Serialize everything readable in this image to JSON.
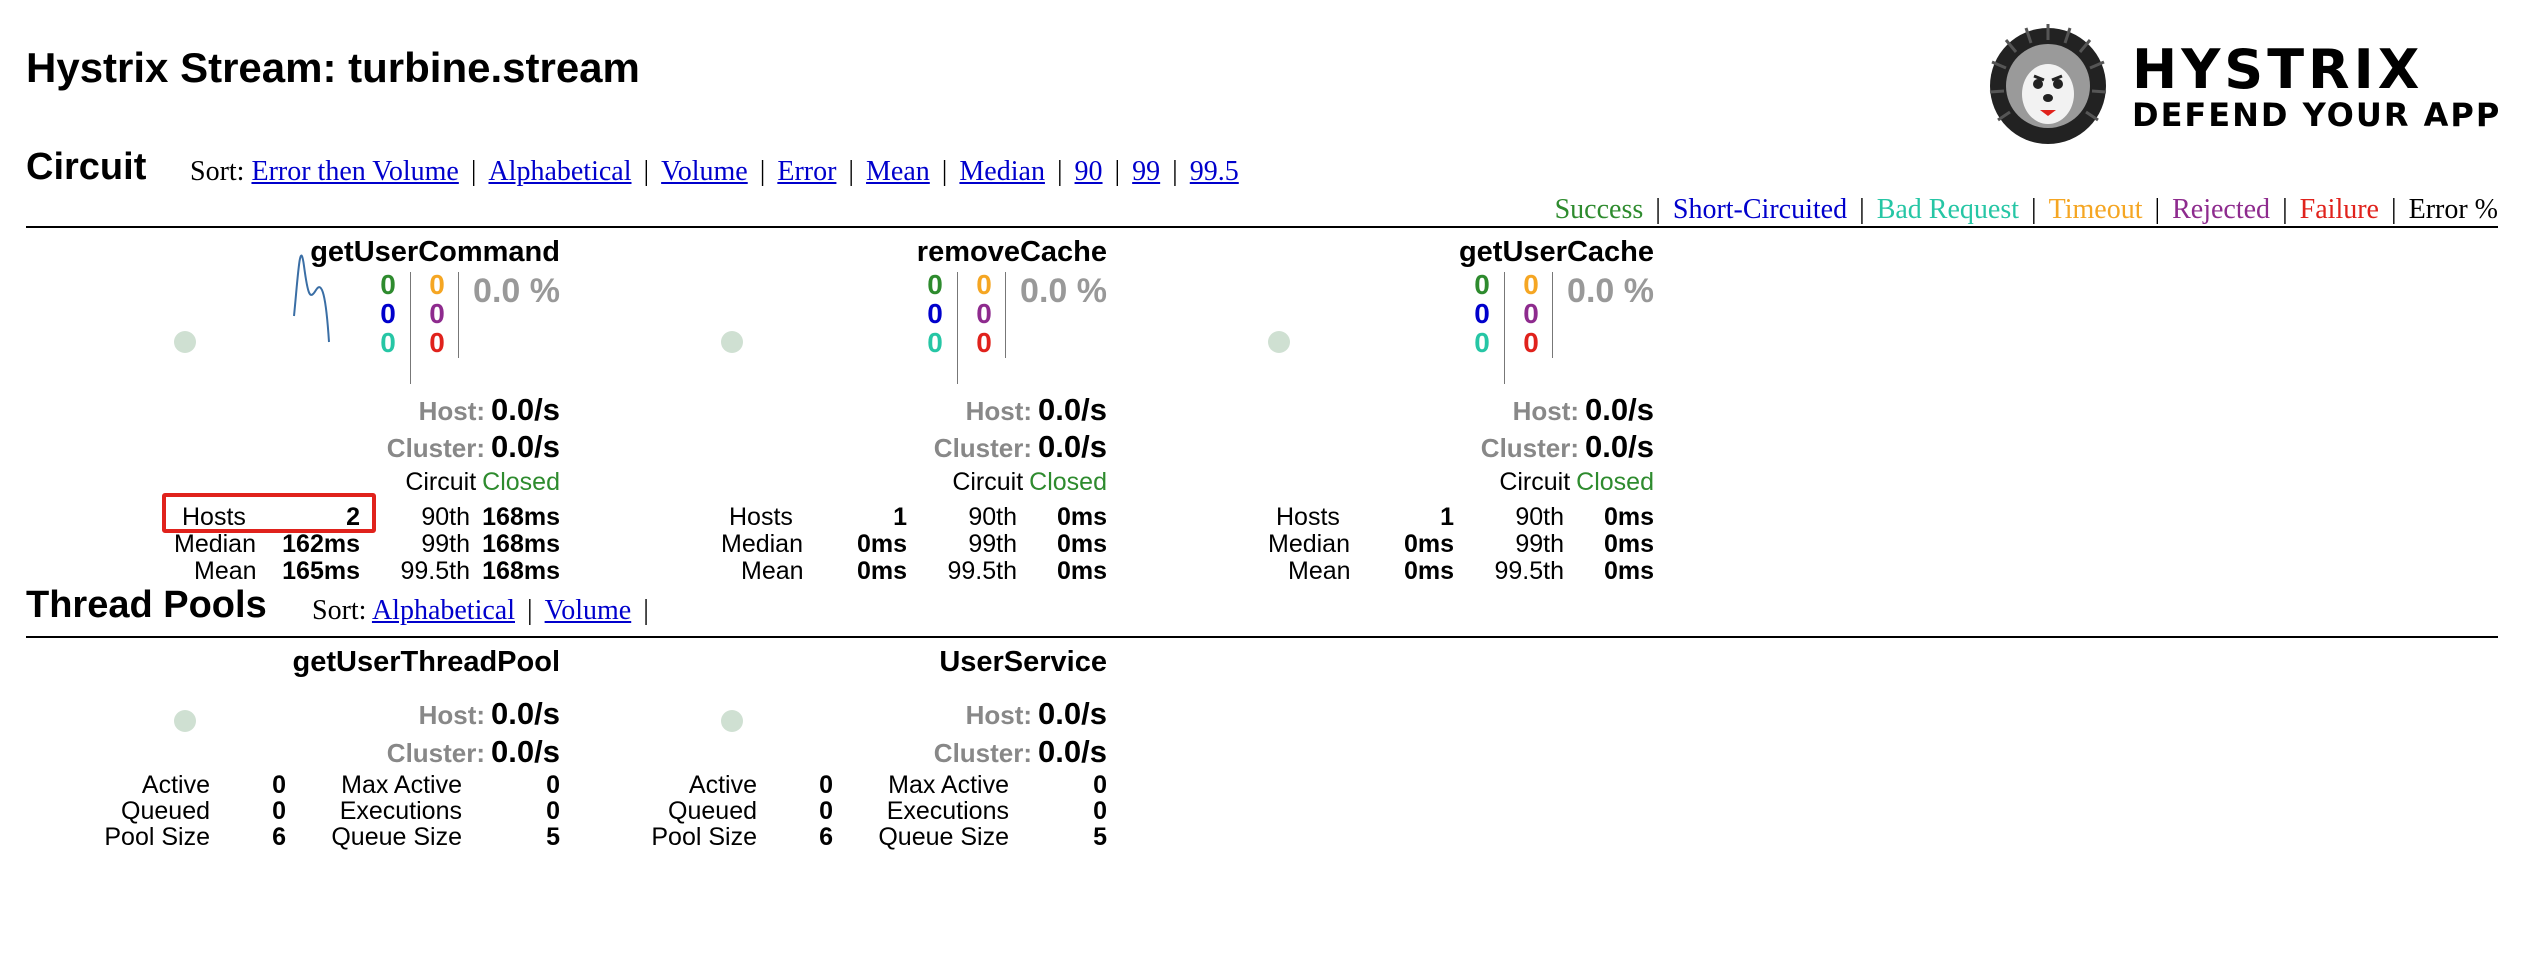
{
  "page": {
    "title": "Hystrix Stream: turbine.stream"
  },
  "logo": {
    "word1": "HYSTRIX",
    "word2": "DEFEND YOUR APP"
  },
  "circuit_section": {
    "title": "Circuit",
    "sort_label": "Sort:",
    "sort_links": [
      "Error then Volume",
      "Alphabetical",
      "Volume",
      "Error",
      "Mean",
      "Median",
      "90",
      "99",
      "99.5"
    ],
    "legend": [
      {
        "label": "Success",
        "color": "#2e8b2e"
      },
      {
        "label": "Short-Circuited",
        "color": "#0000cc"
      },
      {
        "label": "Bad Request",
        "color": "#26c6a5"
      },
      {
        "label": "Timeout",
        "color": "#f5a623"
      },
      {
        "label": "Rejected",
        "color": "#8e2b8e"
      },
      {
        "label": "Failure",
        "color": "#e0221c"
      },
      {
        "label": "Error %",
        "color": "#000000"
      }
    ]
  },
  "circuits": [
    {
      "name": "getUserCommand",
      "counts": {
        "success": "0",
        "short_circuited": "0",
        "bad_request": "0",
        "timeout": "0",
        "rejected": "0",
        "failure": "0"
      },
      "error_pct": "0.0 %",
      "host_label": "Host:",
      "host_rate": "0.0/s",
      "cluster_label": "Cluster:",
      "cluster_rate": "0.0/s",
      "circuit_label": "Circuit",
      "circuit_status": "Closed",
      "hosts_label": "Hosts",
      "hosts": "2",
      "median_label": "Median",
      "median": "162ms",
      "mean_label": "Mean",
      "mean": "165ms",
      "p90_label": "90th",
      "p90": "168ms",
      "p99_label": "99th",
      "p99": "168ms",
      "p995_label": "99.5th",
      "p995": "168ms",
      "has_sparkline": true
    },
    {
      "name": "removeCache",
      "counts": {
        "success": "0",
        "short_circuited": "0",
        "bad_request": "0",
        "timeout": "0",
        "rejected": "0",
        "failure": "0"
      },
      "error_pct": "0.0 %",
      "host_label": "Host:",
      "host_rate": "0.0/s",
      "cluster_label": "Cluster:",
      "cluster_rate": "0.0/s",
      "circuit_label": "Circuit",
      "circuit_status": "Closed",
      "hosts_label": "Hosts",
      "hosts": "1",
      "median_label": "Median",
      "median": "0ms",
      "mean_label": "Mean",
      "mean": "0ms",
      "p90_label": "90th",
      "p90": "0ms",
      "p99_label": "99th",
      "p99": "0ms",
      "p995_label": "99.5th",
      "p995": "0ms",
      "has_sparkline": false
    },
    {
      "name": "getUserCache",
      "counts": {
        "success": "0",
        "short_circuited": "0",
        "bad_request": "0",
        "timeout": "0",
        "rejected": "0",
        "failure": "0"
      },
      "error_pct": "0.0 %",
      "host_label": "Host:",
      "host_rate": "0.0/s",
      "cluster_label": "Cluster:",
      "cluster_rate": "0.0/s",
      "circuit_label": "Circuit",
      "circuit_status": "Closed",
      "hosts_label": "Hosts",
      "hosts": "1",
      "median_label": "Median",
      "median": "0ms",
      "mean_label": "Mean",
      "mean": "0ms",
      "p90_label": "90th",
      "p90": "0ms",
      "p99_label": "99th",
      "p99": "0ms",
      "p995_label": "99.5th",
      "p995": "0ms",
      "has_sparkline": false
    }
  ],
  "threadpool_section": {
    "title": "Thread Pools",
    "sort_label": "Sort:",
    "sort_links": [
      "Alphabetical",
      "Volume"
    ]
  },
  "threadpools": [
    {
      "name": "getUserThreadPool",
      "host_label": "Host:",
      "host_rate": "0.0/s",
      "cluster_label": "Cluster:",
      "cluster_rate": "0.0/s",
      "active_label": "Active",
      "active": "0",
      "queued_label": "Queued",
      "queued": "0",
      "pool_size_label": "Pool Size",
      "pool_size": "6",
      "max_active_label": "Max Active",
      "max_active": "0",
      "executions_label": "Executions",
      "executions": "0",
      "queue_size_label": "Queue Size",
      "queue_size": "5"
    },
    {
      "name": "UserService",
      "host_label": "Host:",
      "host_rate": "0.0/s",
      "cluster_label": "Cluster:",
      "cluster_rate": "0.0/s",
      "active_label": "Active",
      "active": "0",
      "queued_label": "Queued",
      "queued": "0",
      "pool_size_label": "Pool Size",
      "pool_size": "6",
      "max_active_label": "Max Active",
      "max_active": "0",
      "executions_label": "Executions",
      "executions": "0",
      "queue_size_label": "Queue Size",
      "queue_size": "5"
    }
  ],
  "colors": {
    "success": "#2e8b2e",
    "short_circuited": "#0000cc",
    "bad_request": "#26c6a5",
    "timeout": "#f5a623",
    "rejected": "#8e2b8e",
    "failure": "#e0221c",
    "highlight": "#e0221c",
    "circle": "#cfe0d2",
    "sparkline": "#3a6ea5"
  }
}
